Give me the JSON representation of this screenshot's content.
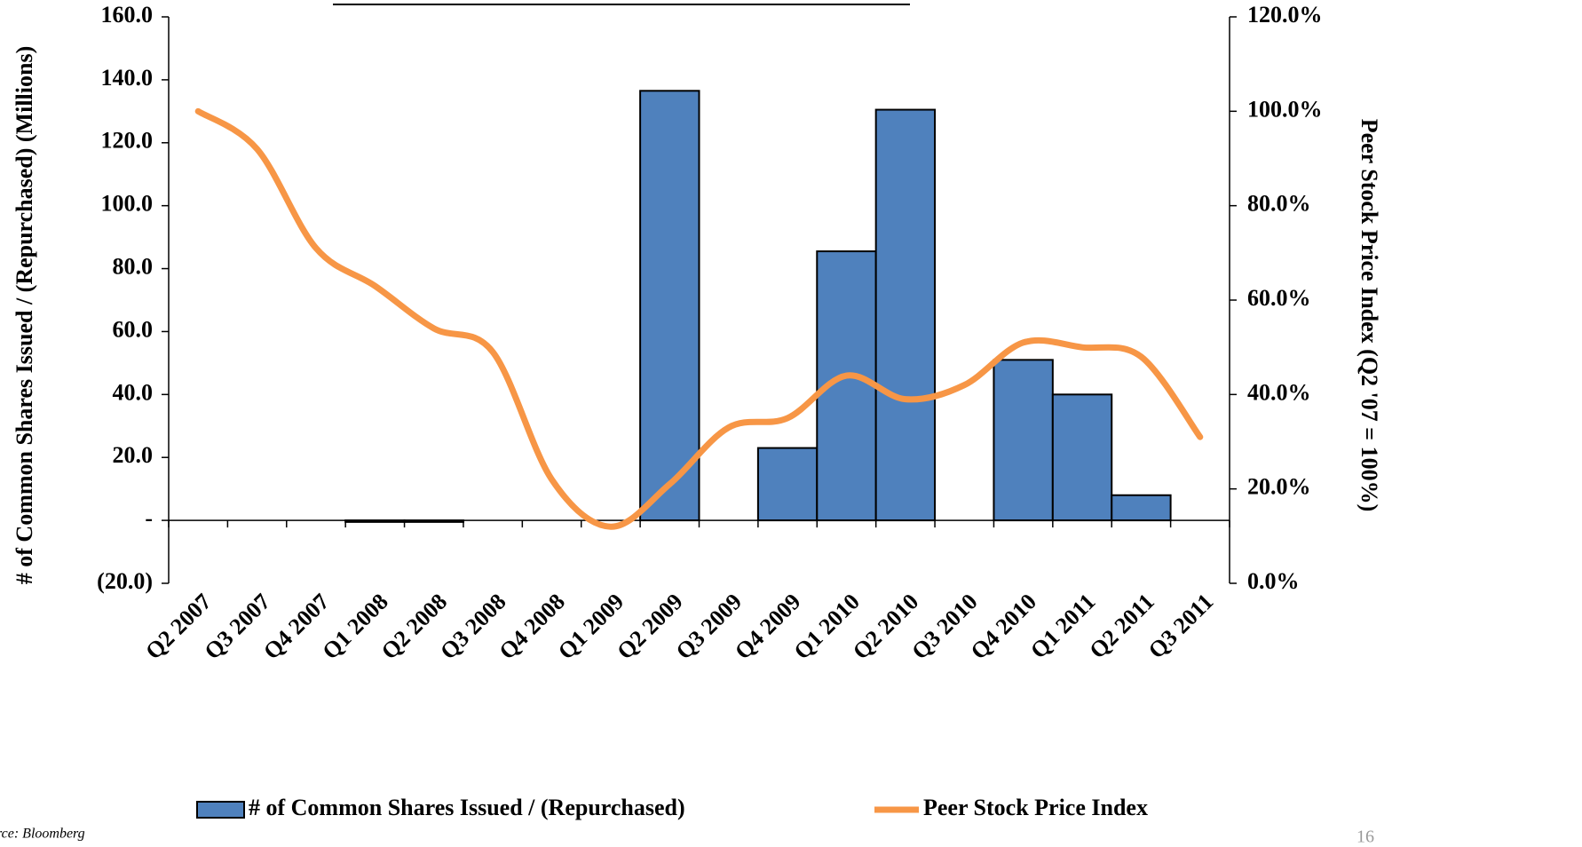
{
  "chart_data": {
    "type": "bar-line",
    "source": "Source: Bloomberg",
    "page_number": "16",
    "ylabel": "# of Common Shares Issued / (Repurchased) (Millions)",
    "y2label": "Peer Stock Price Index (Q2  '07 = 100%)",
    "categories": [
      "Q2 2007",
      "Q3 2007",
      "Q4 2007",
      "Q1 2008",
      "Q2 2008",
      "Q3 2008",
      "Q4 2008",
      "Q1 2009",
      "Q2 2009",
      "Q3 2009",
      "Q4 2009",
      "Q1 2010",
      "Q2 2010",
      "Q3 2010",
      "Q4 2010",
      "Q1 2011",
      "Q2 2011",
      "Q3 2011"
    ],
    "series": [
      {
        "name": "# of Common Shares Issued / (Repurchased)",
        "type": "bar",
        "color": "#4f81bd",
        "values": [
          0,
          0,
          0,
          -0.5,
          -0.5,
          0,
          0,
          0,
          136.5,
          0,
          23,
          85.5,
          130.5,
          0,
          51,
          40,
          8,
          0
        ]
      },
      {
        "name": "Peer Stock Price Index",
        "type": "line",
        "axis": "y2",
        "color": "#f79646",
        "values": [
          100,
          92,
          71,
          63,
          54,
          49,
          22,
          12,
          21,
          33,
          35,
          44,
          39,
          42,
          51,
          50,
          48,
          31
        ]
      }
    ],
    "ylim": [
      -20,
      160
    ],
    "yticks": [
      {
        "value": -20,
        "label": "(20.0)"
      },
      {
        "value": 0,
        "label": "-"
      },
      {
        "value": 20,
        "label": "20.0"
      },
      {
        "value": 40,
        "label": "40.0"
      },
      {
        "value": 60,
        "label": "60.0"
      },
      {
        "value": 80,
        "label": "80.0"
      },
      {
        "value": 100,
        "label": "100.0"
      },
      {
        "value": 120,
        "label": "120.0"
      },
      {
        "value": 140,
        "label": "140.0"
      },
      {
        "value": 160,
        "label": "160.0"
      }
    ],
    "y2lim": [
      0,
      120
    ],
    "y2ticks": [
      {
        "value": 0,
        "label": "0.0%"
      },
      {
        "value": 20,
        "label": "20.0%"
      },
      {
        "value": 40,
        "label": "40.0%"
      },
      {
        "value": 60,
        "label": "60.0%"
      },
      {
        "value": 80,
        "label": "80.0%"
      },
      {
        "value": 100,
        "label": "100.0%"
      },
      {
        "value": 120,
        "label": "120.0%"
      }
    ]
  }
}
